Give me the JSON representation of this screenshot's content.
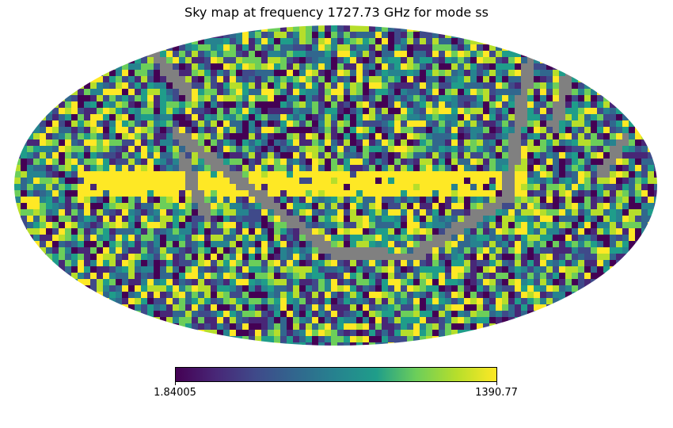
{
  "chart_data": {
    "type": "heatmap",
    "title": "Sky map at frequency 1727.73 GHz for mode ss",
    "projection": "mollweide",
    "colormap": "viridis",
    "colormap_stops": [
      "#440154",
      "#482777",
      "#3f4a8a",
      "#31678e",
      "#26838f",
      "#1f9d8a",
      "#6cce5a",
      "#b6de2b",
      "#fee825"
    ],
    "masked_color": "#808080",
    "colorbar": {
      "min": 1.84005,
      "max": 1390.77,
      "min_label": "1.84005",
      "max_label": "1390.77",
      "orientation": "horizontal"
    },
    "features": [
      "bright (saturated) horizontal band along the central latitude",
      "grey masked diagonal stripes",
      "noisy pixelized background"
    ]
  }
}
